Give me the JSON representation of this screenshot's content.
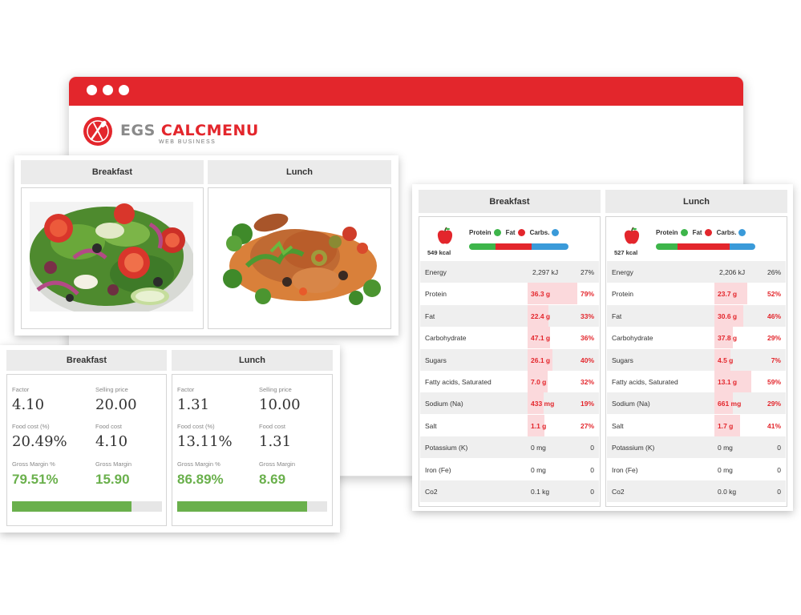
{
  "brand": {
    "name_part1": "EGS ",
    "name_part2": "CALCMENU",
    "tagline": "WEB BUSINESS",
    "accent": "#e3262c"
  },
  "photos": {
    "meals": [
      {
        "label": "Breakfast",
        "image": "salad-photo"
      },
      {
        "label": "Lunch",
        "image": "chicken-dish-photo"
      }
    ]
  },
  "costs": {
    "labels": {
      "factor": "Factor",
      "selling_price": "Selling price",
      "food_cost_pct": "Food cost (%)",
      "food_cost": "Food cost",
      "gross_margin_pct": "Gross Margin %",
      "gross_margin": "Gross Margin"
    },
    "meals": [
      {
        "label": "Breakfast",
        "factor": "4.10",
        "selling_price": "20.00",
        "food_cost_pct": "20.49%",
        "food_cost": "4.10",
        "gross_margin_pct": "79.51%",
        "gross_margin": "15.90",
        "margin_fraction": 0.7951
      },
      {
        "label": "Lunch",
        "factor": "1.31",
        "selling_price": "10.00",
        "food_cost_pct": "13.11%",
        "food_cost": "1.31",
        "gross_margin_pct": "86.89%",
        "gross_margin": "8.69",
        "margin_fraction": 0.8689
      }
    ],
    "bar_color": "#6ab04c"
  },
  "nutrition": {
    "legend": {
      "protein": "Protein",
      "fat": "Fat",
      "carbs": "Carbs."
    },
    "colors": {
      "protein": "#3db54a",
      "fat": "#e3262c",
      "carbs": "#3a9ad9"
    },
    "meals": [
      {
        "label": "Breakfast",
        "kcal": "549 kcal",
        "macro_split": [
          0.27,
          0.36,
          0.37
        ],
        "rows": [
          {
            "name": "Energy",
            "amount": "2,297 kJ",
            "pct": "27%",
            "fraction": 0,
            "highlight": false
          },
          {
            "name": "Protein",
            "amount": "36.3 g",
            "pct": "79%",
            "fraction": 0.79,
            "highlight": true
          },
          {
            "name": "Fat",
            "amount": "22.4 g",
            "pct": "33%",
            "fraction": 0.33,
            "highlight": true
          },
          {
            "name": "Carbohydrate",
            "amount": "47.1 g",
            "pct": "36%",
            "fraction": 0.36,
            "highlight": true
          },
          {
            "name": "Sugars",
            "amount": "26.1 g",
            "pct": "40%",
            "fraction": 0.4,
            "highlight": true
          },
          {
            "name": "Fatty acids, Saturated",
            "amount": "7.0 g",
            "pct": "32%",
            "fraction": 0.32,
            "highlight": true
          },
          {
            "name": "Sodium (Na)",
            "amount": "433 mg",
            "pct": "19%",
            "fraction": 0.19,
            "highlight": true
          },
          {
            "name": "Salt",
            "amount": "1.1 g",
            "pct": "27%",
            "fraction": 0.27,
            "highlight": true
          },
          {
            "name": "Potassium (K)",
            "amount": "0 mg",
            "pct": "0",
            "fraction": 0,
            "highlight": false
          },
          {
            "name": "Iron (Fe)",
            "amount": "0 mg",
            "pct": "0",
            "fraction": 0,
            "highlight": false
          },
          {
            "name": "Co2",
            "amount": "0.1 kg",
            "pct": "0",
            "fraction": 0,
            "highlight": false
          }
        ]
      },
      {
        "label": "Lunch",
        "kcal": "527 kcal",
        "macro_split": [
          0.22,
          0.52,
          0.26
        ],
        "rows": [
          {
            "name": "Energy",
            "amount": "2,206 kJ",
            "pct": "26%",
            "fraction": 0,
            "highlight": false
          },
          {
            "name": "Protein",
            "amount": "23.7 g",
            "pct": "52%",
            "fraction": 0.52,
            "highlight": true
          },
          {
            "name": "Fat",
            "amount": "30.6 g",
            "pct": "46%",
            "fraction": 0.46,
            "highlight": true
          },
          {
            "name": "Carbohydrate",
            "amount": "37.8 g",
            "pct": "29%",
            "fraction": 0.29,
            "highlight": true
          },
          {
            "name": "Sugars",
            "amount": "4.5 g",
            "pct": "7%",
            "fraction": 0.07,
            "highlight": true
          },
          {
            "name": "Fatty acids, Saturated",
            "amount": "13.1 g",
            "pct": "59%",
            "fraction": 0.59,
            "highlight": true
          },
          {
            "name": "Sodium (Na)",
            "amount": "661 mg",
            "pct": "29%",
            "fraction": 0.29,
            "highlight": true
          },
          {
            "name": "Salt",
            "amount": "1.7 g",
            "pct": "41%",
            "fraction": 0.41,
            "highlight": true
          },
          {
            "name": "Potassium (K)",
            "amount": "0 mg",
            "pct": "0",
            "fraction": 0,
            "highlight": false
          },
          {
            "name": "Iron (Fe)",
            "amount": "0 mg",
            "pct": "0",
            "fraction": 0,
            "highlight": false
          },
          {
            "name": "Co2",
            "amount": "0.0 kg",
            "pct": "0",
            "fraction": 0,
            "highlight": false
          }
        ]
      }
    ]
  }
}
